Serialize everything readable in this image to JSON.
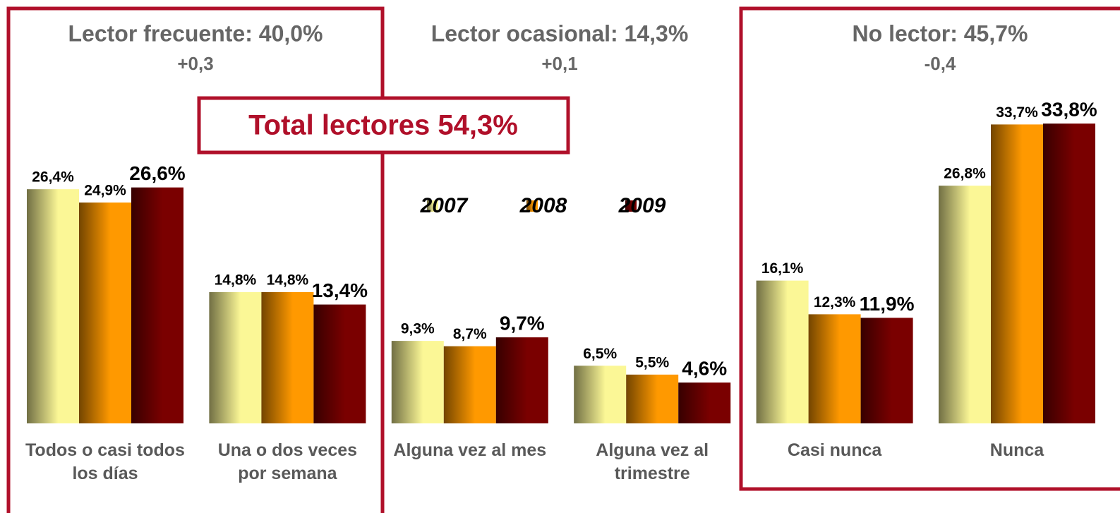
{
  "chart_data": {
    "type": "bar",
    "categories": [
      "Todos o casi todos los días",
      "Una o dos veces por semana",
      "Alguna vez al mes",
      "Alguna vez al trimestre",
      "Casi nunca",
      "Nunca"
    ],
    "series": [
      {
        "name": "2007",
        "color": "#fbf796",
        "values": [
          26.4,
          14.8,
          9.3,
          6.5,
          16.1,
          26.8
        ],
        "value_labels": [
          "26,4%",
          "14,8%",
          "9,3%",
          "6,5%",
          "16,1%",
          "26,8%"
        ]
      },
      {
        "name": "2008",
        "color": "#ff9900",
        "values": [
          24.9,
          14.8,
          8.7,
          5.5,
          12.3,
          33.7
        ],
        "value_labels": [
          "24,9%",
          "14,8%",
          "8,7%",
          "5,5%",
          "12,3%",
          "33,7%"
        ]
      },
      {
        "name": "2009",
        "color": "#7a0000",
        "values": [
          26.6,
          13.4,
          9.7,
          4.6,
          11.9,
          33.8
        ],
        "value_labels": [
          "26,6%",
          "13,4%",
          "9,7%",
          "4,6%",
          "11,9%",
          "33,8%"
        ]
      }
    ],
    "groups": [
      {
        "title": "Lector frecuente: 40,0%",
        "change": "+0,3"
      },
      {
        "title": "Lector ocasional: 14,3%",
        "change": "+0,1"
      },
      {
        "title": "No lector: 45,7%",
        "change": "-0,4"
      }
    ],
    "total": "Total lectores 54,3%",
    "frame_color": "#b0102a"
  }
}
